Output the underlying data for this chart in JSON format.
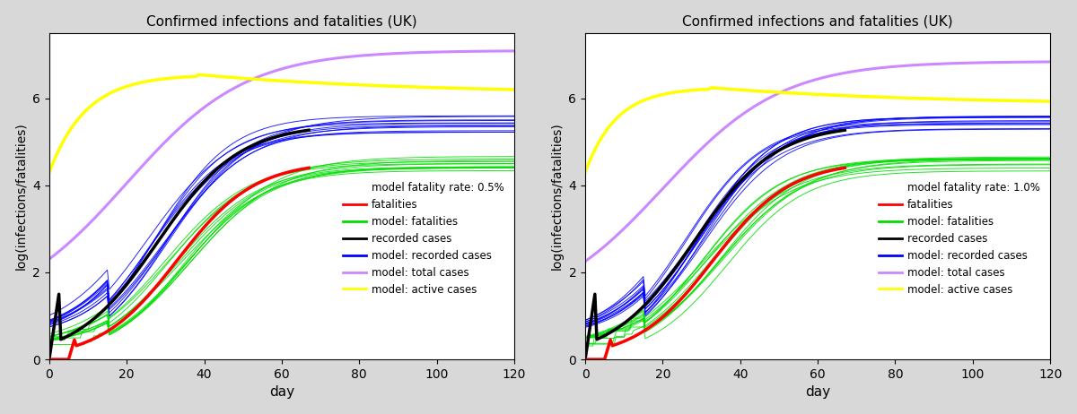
{
  "title": "Confirmed infections and fatalities (UK)",
  "xlabel": "day",
  "ylabel": "log(infections/fatalities)",
  "xlim": [
    0,
    120
  ],
  "ylim": [
    0,
    7.5
  ],
  "yticks": [
    0,
    2,
    4,
    6
  ],
  "xticks": [
    0,
    20,
    40,
    60,
    80,
    100,
    120
  ],
  "background_color": "#d8d8d8",
  "plot_bg_color": "#ffffff",
  "figsize": [
    12.0,
    4.62
  ],
  "dpi": 100,
  "fatality_rate_left": "0.5%",
  "fatality_rate_right": "1.0%",
  "n_model_runs": 12,
  "obs_end_day": 67,
  "colors": {
    "fatalities": "#ff0000",
    "model_fatalities": "#00dd00",
    "recorded_cases": "#000000",
    "model_recorded": "#0000ff",
    "model_total": "#cc88ff",
    "model_active": "#ffff00"
  },
  "left_panel": {
    "fatality_rate": 0.005,
    "fatality_rate_label": "0.5%",
    "model_total_end": 7.1,
    "model_active_peak": 6.55,
    "model_active_peak_day": 38,
    "model_active_end": 6.1
  },
  "right_panel": {
    "fatality_rate": 0.01,
    "fatality_rate_label": "1.0%",
    "model_total_end": 6.85,
    "model_active_peak": 6.25,
    "model_active_peak_day": 32,
    "model_active_end": 5.85
  }
}
